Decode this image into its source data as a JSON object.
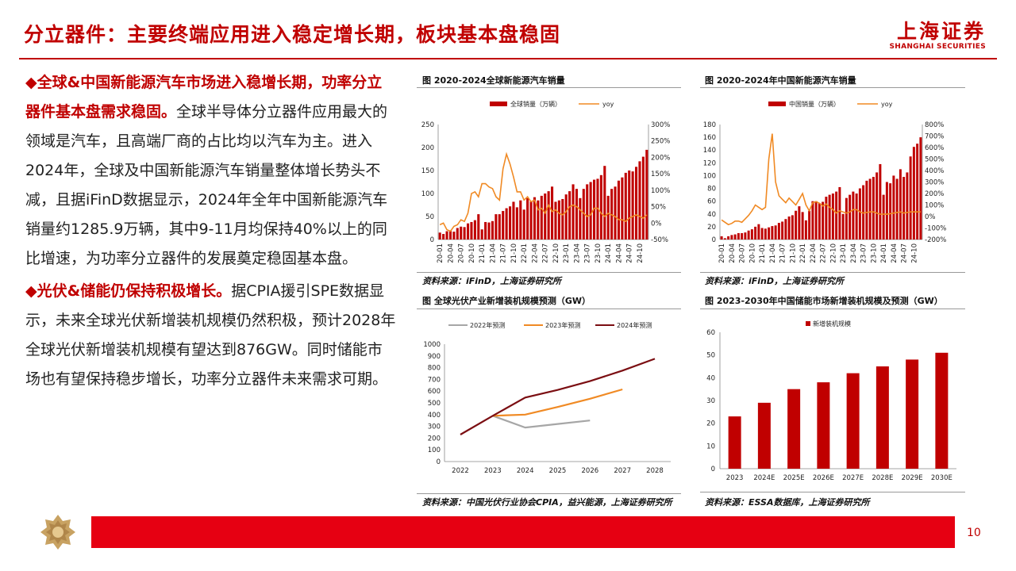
{
  "header": {
    "title": "分立器件：主要终端应用进入稳定增长期，板块基本盘稳固",
    "logo_cn": "上海证券",
    "logo_en": "SHANGHAI SECURITIES"
  },
  "body": {
    "p1_marker": "◆",
    "p1_bold": "全球&中国新能源汽车市场进入稳增长期，功率分立器件基本盘需求稳固。",
    "p1_text": "全球半导体分立器件应用最大的领域是汽车，且高端厂商的占比均以汽车为主。进入2024年，全球及中国新能源汽车销量整体增长势头不减，且据iFinD数据显示，2024年全年中国新能源汽车销量约1285.9万辆，其中9-11月均保持40%以上的同比增速，为功率分立器件的发展奠定稳固基本盘。",
    "p2_marker": "◆",
    "p2_bold": "光伏&储能仍保持积极增长。",
    "p2_text": "据CPIA援引SPE数据显示，未来全球光伏新增装机规模仍然积极，预计2028年全球光伏新增装机规模有望达到876GW。同时储能市场也有望保持稳步增长，功率分立器件未来需求可期。"
  },
  "footer": {
    "page": "10"
  },
  "colors": {
    "red": "#c00000",
    "bar_red": "#c00000",
    "orange": "#f08a24",
    "gray": "#a6a6a6",
    "dark_red": "#7b0e12",
    "footer_red": "#e60012"
  },
  "chart_data": [
    {
      "type": "bar",
      "title": "图 2020-2024全球新能源汽车销量",
      "source": "资料来源：iFinD，上海证券研究所",
      "legend": [
        "全球销量（万辆）",
        "yoy"
      ],
      "left_ticks": [
        "0",
        "50",
        "100",
        "150",
        "200",
        "250"
      ],
      "right_ticks": [
        "-50%",
        "0%",
        "50%",
        "100%",
        "150%",
        "200%",
        "250%",
        "300%"
      ],
      "x_ticks": [
        "20-01",
        "20-04",
        "20-07",
        "20-10",
        "21-01",
        "21-04",
        "21-07",
        "21-10",
        "22-01",
        "22-04",
        "22-07",
        "22-10",
        "23-01",
        "23-04",
        "23-07",
        "23-10",
        "24-01",
        "24-04",
        "24-07",
        "24-10"
      ],
      "ylim": [
        0,
        250
      ],
      "y2lim": [
        -50,
        300
      ],
      "series": [
        {
          "name": "全球销量（万辆）",
          "kind": "bar",
          "values": [
            15,
            12,
            18,
            20,
            17,
            25,
            28,
            27,
            35,
            38,
            42,
            55,
            22,
            38,
            37,
            40,
            55,
            55,
            62,
            68,
            72,
            82,
            70,
            85,
            65,
            90,
            83,
            92,
            85,
            95,
            100,
            105,
            115,
            82,
            85,
            88,
            98,
            105,
            120,
            110,
            90,
            110,
            120,
            125,
            130,
            132,
            140,
            160,
            95,
            110,
            115,
            128,
            135,
            145,
            150,
            148,
            158,
            170,
            180,
            195
          ]
        },
        {
          "name": "yoy",
          "kind": "line",
          "values": [
            -5,
            0,
            -20,
            -25,
            -10,
            -5,
            10,
            5,
            30,
            90,
            95,
            80,
            120,
            120,
            110,
            105,
            80,
            70,
            165,
            210,
            180,
            140,
            95,
            95,
            70,
            80,
            65,
            70,
            40,
            45,
            30,
            55,
            35,
            40,
            30,
            25,
            35,
            50,
            55,
            50,
            40,
            30,
            20,
            25,
            45,
            45,
            30,
            20,
            30,
            25,
            20,
            10,
            10,
            5,
            15,
            20,
            25,
            20,
            15,
            25
          ]
        }
      ]
    },
    {
      "type": "bar",
      "title": "图 2020-2024年中国新能源汽车销量",
      "source": "资料来源：iFinD，上海证券研究所",
      "legend": [
        "中国销量（万辆）",
        "yoy"
      ],
      "left_ticks": [
        "0",
        "20",
        "40",
        "60",
        "80",
        "100",
        "120",
        "140",
        "160",
        "180"
      ],
      "right_ticks": [
        "-200%",
        "-100%",
        "0%",
        "100%",
        "200%",
        "300%",
        "400%",
        "500%",
        "600%",
        "700%",
        "800%"
      ],
      "x_ticks": [
        "20-01",
        "20-04",
        "20-07",
        "20-10",
        "21-01",
        "21-04",
        "21-07",
        "21-10",
        "22-01",
        "22-04",
        "22-07",
        "22-10",
        "23-01",
        "23-04",
        "23-07",
        "23-10",
        "24-01",
        "24-04",
        "24-07",
        "24-10"
      ],
      "ylim": [
        0,
        180
      ],
      "y2lim": [
        -200,
        800
      ],
      "series": [
        {
          "name": "中国销量（万辆）",
          "kind": "bar",
          "values": [
            5,
            2,
            5,
            7,
            8,
            10,
            10,
            11,
            14,
            16,
            20,
            24,
            18,
            17,
            19,
            21,
            22,
            26,
            28,
            32,
            36,
            38,
            45,
            52,
            43,
            30,
            45,
            60,
            60,
            57,
            59,
            67,
            70,
            72,
            75,
            82,
            40,
            65,
            70,
            75,
            72,
            80,
            85,
            92,
            95,
            98,
            105,
            118,
            70,
            90,
            88,
            100,
            95,
            110,
            98,
            105,
            130,
            145,
            150,
            160
          ]
        },
        {
          "name": "yoy",
          "kind": "line",
          "values": [
            -30,
            -50,
            -70,
            -60,
            -40,
            -40,
            -50,
            -20,
            10,
            50,
            100,
            80,
            60,
            80,
            500,
            720,
            300,
            180,
            150,
            120,
            160,
            130,
            100,
            150,
            200,
            100,
            50,
            120,
            130,
            115,
            90,
            110,
            80,
            60,
            30,
            50,
            40,
            30,
            40,
            60,
            60,
            40,
            30,
            35,
            40,
            40,
            30,
            20,
            20,
            20,
            25,
            30,
            35,
            40,
            30,
            35,
            40,
            40,
            40,
            40
          ]
        }
      ]
    },
    {
      "type": "line",
      "title": "图 全球光伏产业新增装机规模预测（GW）",
      "source": "资料来源：中国光伏行业协会CPIA，益兴能源，上海证券研究所",
      "x": [
        "2022",
        "2023",
        "2024",
        "2025",
        "2026",
        "2027",
        "2028"
      ],
      "y_ticks": [
        "0",
        "100",
        "200",
        "300",
        "400",
        "500",
        "600",
        "700",
        "800",
        "900",
        "1000"
      ],
      "ylim": [
        0,
        1000
      ],
      "series": [
        {
          "name": "2022年预测",
          "values": [
            null,
            390,
            290,
            320,
            350,
            null,
            null
          ]
        },
        {
          "name": "2023年预测",
          "values": [
            null,
            390,
            400,
            465,
            535,
            615,
            null
          ]
        },
        {
          "name": "2024年预测",
          "values": [
            230,
            390,
            545,
            610,
            685,
            775,
            876
          ]
        }
      ]
    },
    {
      "type": "bar",
      "title": "图 2023-2030年中国储能市场新增装机规模及预测（GW）",
      "source": "资料来源：ESSA数据库，上海证券研究所",
      "legend": [
        "新增装机规模"
      ],
      "categories": [
        "2023",
        "2024E",
        "2025E",
        "2026E",
        "2027E",
        "2028E",
        "2029E",
        "2030E"
      ],
      "values": [
        23,
        29,
        35,
        38,
        42,
        45,
        48,
        51
      ],
      "y_ticks": [
        "0",
        "10",
        "20",
        "30",
        "40",
        "50",
        "60"
      ],
      "ylim": [
        0,
        60
      ]
    }
  ]
}
